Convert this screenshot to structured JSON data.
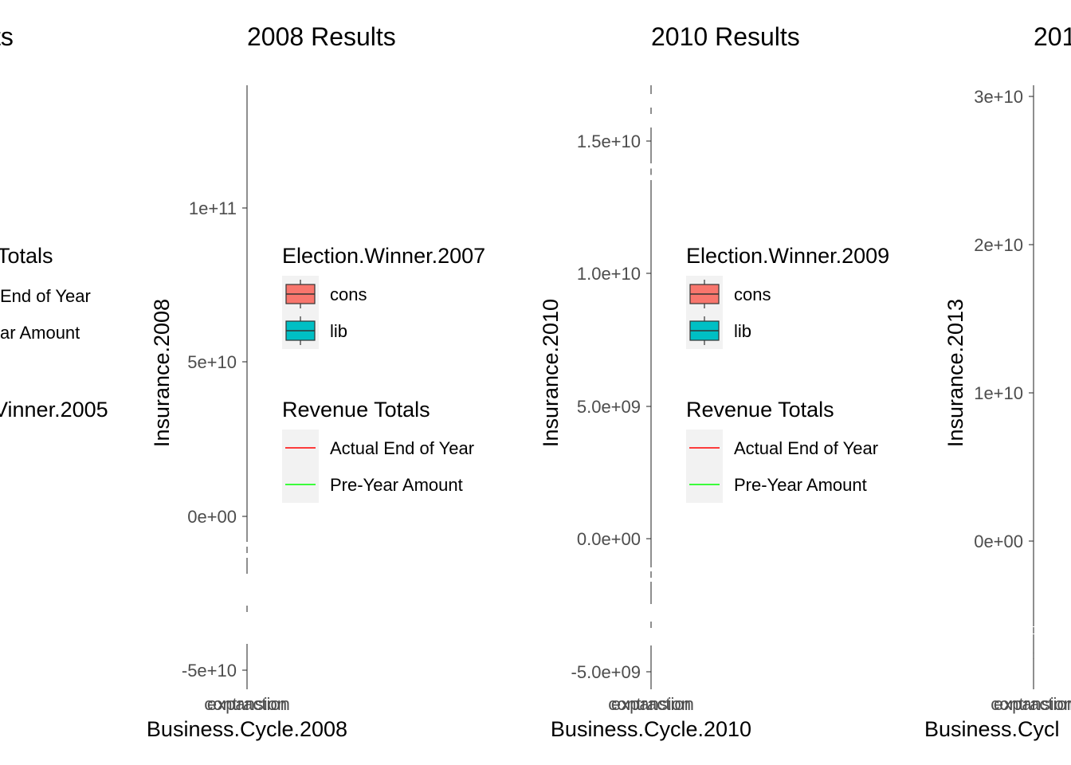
{
  "colors": {
    "cons": "#F8766D",
    "lib": "#00BFC4",
    "actual_end_of_year": "#FF0000",
    "pre_year_amount": "#00FF00",
    "legend_key_bg": "#F2F2F2",
    "axis": "#333333",
    "tick_text": "#4D4D4D"
  },
  "chart_data": [
    {
      "type": "boxplot",
      "title": "ts",
      "xlabel": "",
      "ylabel": "",
      "legends": [
        {
          "title": "Totals",
          "kind": "line",
          "entries": [
            {
              "label": "End of Year",
              "color_key": "actual_end_of_year"
            },
            {
              "label": "ar Amount",
              "color_key": "pre_year_amount"
            }
          ]
        },
        {
          "title": "Vinner.2005",
          "kind": "fill",
          "entries": []
        }
      ]
    },
    {
      "type": "boxplot",
      "title": "2008 Results",
      "xlabel": "Business.Cycle.2008",
      "ylabel": "Insurance.2008",
      "x_ticks": [
        "contraction",
        "expansion"
      ],
      "y_ticks": [
        {
          "value": -50000000000.0,
          "label": "-5e+10"
        },
        {
          "value": 0,
          "label": "0e+00"
        },
        {
          "value": 50000000000.0,
          "label": "5e+10"
        },
        {
          "value": 100000000000.0,
          "label": "1e+11"
        }
      ],
      "ylim": [
        -55000000000.0,
        140000000000.0
      ],
      "legends": [
        {
          "title": "Election.Winner.2007",
          "kind": "fill",
          "entries": [
            {
              "label": "cons",
              "color_key": "cons"
            },
            {
              "label": "lib",
              "color_key": "lib"
            }
          ]
        },
        {
          "title": "Revenue Totals",
          "kind": "line",
          "entries": [
            {
              "label": "Actual End of Year",
              "color_key": "actual_end_of_year"
            },
            {
              "label": "Pre-Year Amount",
              "color_key": "pre_year_amount"
            }
          ]
        }
      ]
    },
    {
      "type": "boxplot",
      "title": "2010 Results",
      "xlabel": "Business.Cycle.2010",
      "ylabel": "Insurance.2010",
      "x_ticks": [
        "contraction",
        "expansion"
      ],
      "y_ticks": [
        {
          "value": -5000000000.0,
          "label": "-5.0e+09"
        },
        {
          "value": 0,
          "label": "0.0e+00"
        },
        {
          "value": 5000000000.0,
          "label": "5.0e+09"
        },
        {
          "value": 10000000000.0,
          "label": "1.0e+10"
        },
        {
          "value": 15000000000.0,
          "label": "1.5e+10"
        }
      ],
      "ylim": [
        -5500000000.0,
        17000000000.0
      ],
      "legends": [
        {
          "title": "Election.Winner.2009",
          "kind": "fill",
          "entries": [
            {
              "label": "cons",
              "color_key": "cons"
            },
            {
              "label": "lib",
              "color_key": "lib"
            }
          ]
        },
        {
          "title": "Revenue Totals",
          "kind": "line",
          "entries": [
            {
              "label": "Actual End of Year",
              "color_key": "actual_end_of_year"
            },
            {
              "label": "Pre-Year Amount",
              "color_key": "pre_year_amount"
            }
          ]
        }
      ]
    },
    {
      "type": "boxplot",
      "title": "201",
      "xlabel": "Business.Cycl",
      "ylabel": "Insurance.2013",
      "x_ticks": [
        "contraction",
        "expansion"
      ],
      "y_ticks": [
        {
          "value": 0,
          "label": "0e+00"
        },
        {
          "value": 10000000000.0,
          "label": "1e+10"
        },
        {
          "value": 20000000000.0,
          "label": "2e+10"
        },
        {
          "value": 30000000000.0,
          "label": "3e+10"
        }
      ],
      "ylim": [
        -10000000000.0,
        30500000000.0
      ],
      "legends": []
    }
  ]
}
